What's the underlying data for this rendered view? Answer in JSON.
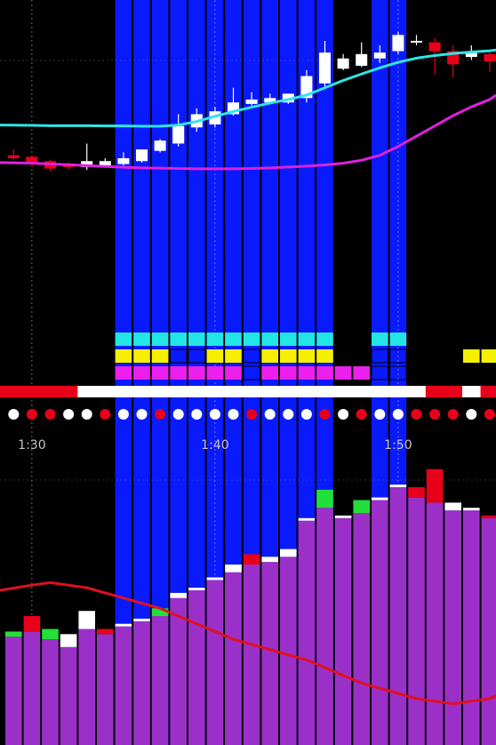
{
  "chart_data": {
    "type": "candlestick",
    "x_ticks": [
      "1:30",
      "1:40",
      "1:50"
    ],
    "x_tick_bars": [
      1,
      11,
      21
    ],
    "price_range": [
      0,
      100
    ],
    "volume_range": [
      0,
      100
    ],
    "colors": {
      "background": "#000000",
      "highlight": "#0a1aff",
      "up_candle": "#ffffff",
      "down_candle": "#e8001a",
      "fast_ma": "#2ee6e6",
      "slow_ma": "#e020e0",
      "volume_bar": "#9b30c8",
      "volume_ma": "#e01020",
      "volume_up_cap": "#ffffff",
      "volume_down_cap": "#e8001a",
      "volume_green_cap": "#22e03a",
      "signal_cyan": "#22e6e6",
      "signal_yellow": "#f4f000",
      "signal_magenta": "#ec20ec",
      "status_red": "#e8001a",
      "status_white": "#ffffff"
    },
    "highlighted_bars": [
      6,
      7,
      8,
      9,
      10,
      11,
      12,
      13,
      14,
      15,
      16,
      17,
      20,
      21
    ],
    "candles": [
      {
        "o": 49.5,
        "h": 51.5,
        "l": 48.0,
        "c": 48.5
      },
      {
        "o": 49.0,
        "h": 49.5,
        "l": 45.5,
        "c": 46.5
      },
      {
        "o": 47.5,
        "h": 48.0,
        "l": 44.0,
        "c": 45.0
      },
      {
        "o": 46.5,
        "h": 47.0,
        "l": 44.5,
        "c": 45.5
      },
      {
        "o": 45.5,
        "h": 53.5,
        "l": 44.5,
        "c": 47.5
      },
      {
        "o": 46.0,
        "h": 48.5,
        "l": 45.5,
        "c": 47.5
      },
      {
        "o": 46.5,
        "h": 50.5,
        "l": 46.0,
        "c": 48.5
      },
      {
        "o": 47.5,
        "h": 51.5,
        "l": 47.0,
        "c": 51.5
      },
      {
        "o": 51.0,
        "h": 55.0,
        "l": 50.5,
        "c": 54.5
      },
      {
        "o": 53.5,
        "h": 63.5,
        "l": 52.5,
        "c": 59.5
      },
      {
        "o": 59.0,
        "h": 65.5,
        "l": 57.5,
        "c": 63.5
      },
      {
        "o": 60.0,
        "h": 66.0,
        "l": 59.0,
        "c": 64.5
      },
      {
        "o": 63.5,
        "h": 72.5,
        "l": 63.0,
        "c": 67.5
      },
      {
        "o": 67.0,
        "h": 71.0,
        "l": 66.5,
        "c": 68.5
      },
      {
        "o": 67.5,
        "h": 70.5,
        "l": 67.0,
        "c": 69.0
      },
      {
        "o": 67.5,
        "h": 70.5,
        "l": 67.0,
        "c": 70.5
      },
      {
        "o": 69.0,
        "h": 78.5,
        "l": 67.5,
        "c": 76.5
      },
      {
        "o": 74.0,
        "h": 88.5,
        "l": 72.5,
        "c": 84.5
      },
      {
        "o": 79.0,
        "h": 84.0,
        "l": 78.5,
        "c": 82.5
      },
      {
        "o": 80.0,
        "h": 88.0,
        "l": 79.5,
        "c": 84.0
      },
      {
        "o": 82.5,
        "h": 87.0,
        "l": 81.0,
        "c": 84.5
      },
      {
        "o": 85.0,
        "h": 91.5,
        "l": 84.0,
        "c": 90.5
      },
      {
        "o": 88.0,
        "h": 90.5,
        "l": 87.0,
        "c": 88.5
      },
      {
        "o": 88.0,
        "h": 89.5,
        "l": 77.0,
        "c": 85.0
      },
      {
        "o": 85.0,
        "h": 87.0,
        "l": 76.0,
        "c": 80.5
      },
      {
        "o": 83.0,
        "h": 87.0,
        "l": 82.0,
        "c": 84.5
      },
      {
        "o": 84.0,
        "h": 84.5,
        "l": 78.0,
        "c": 81.5
      },
      {
        "o": 81.0,
        "h": 82.0,
        "l": 76.0,
        "c": 77.0
      }
    ],
    "fast_ma": [
      59.8,
      59.7,
      59.6,
      59.6,
      59.6,
      59.5,
      59.5,
      59.4,
      59.4,
      59.8,
      61.0,
      62.8,
      64.4,
      65.9,
      67.3,
      68.5,
      70.0,
      72.5,
      75.0,
      77.2,
      79.3,
      81.2,
      82.6,
      83.5,
      84.2,
      84.7,
      85.1,
      85.4
    ],
    "slow_ma": [
      47.0,
      46.8,
      46.5,
      46.3,
      46.0,
      45.7,
      45.4,
      45.2,
      45.1,
      45.0,
      44.9,
      44.9,
      44.9,
      45.0,
      45.2,
      45.5,
      45.8,
      46.2,
      46.8,
      47.8,
      49.5,
      52.5,
      56.0,
      59.5,
      63.0,
      66.0,
      68.5,
      70.0
    ],
    "volume": [
      42,
      44,
      41,
      38,
      45,
      43,
      46,
      48,
      50,
      57,
      60,
      64,
      67,
      70,
      71,
      73,
      87,
      92,
      88,
      90,
      95,
      100,
      96,
      94,
      91,
      91,
      88,
      86
    ],
    "volume_cap_colors": [
      "green",
      "red",
      "green",
      "white",
      "white",
      "red",
      "white",
      "white",
      "green",
      "white",
      "white",
      "white",
      "white",
      "red",
      "white",
      "white",
      "white",
      "green",
      "white",
      "green",
      "white",
      "white",
      "red",
      "red",
      "white",
      "white",
      "red",
      "red"
    ],
    "volume_cap_sizes": [
      2,
      6,
      4,
      5,
      7,
      2,
      1,
      1,
      3,
      2,
      1,
      1,
      3,
      4,
      2,
      3,
      1,
      7,
      1,
      5,
      1,
      1,
      4,
      13,
      3,
      1,
      1,
      5
    ],
    "volume_ma": [
      60,
      62,
      63,
      62,
      61,
      59,
      57,
      55,
      53,
      50,
      47,
      44,
      41,
      39,
      37,
      35,
      33,
      30,
      27,
      24,
      22,
      20,
      18,
      17,
      16,
      17,
      18,
      19
    ],
    "signal_rows": [
      [
        "off",
        "off",
        "off",
        "off",
        "off",
        "off",
        "cyan",
        "cyan",
        "cyan",
        "cyan",
        "cyan",
        "cyan",
        "cyan",
        "cyan",
        "cyan",
        "cyan",
        "cyan",
        "cyan",
        "off",
        "off",
        "cyan",
        "cyan",
        "off",
        "off",
        "off",
        "off",
        "off",
        "off"
      ],
      [
        "off",
        "off",
        "off",
        "off",
        "off",
        "off",
        "yellow",
        "yellow",
        "yellow",
        "dark",
        "dark",
        "yellow",
        "yellow",
        "dark",
        "yellow",
        "yellow",
        "yellow",
        "yellow",
        "off",
        "off",
        "dark",
        "dark",
        "off",
        "off",
        "off",
        "yellow",
        "yellow",
        "yellow"
      ],
      [
        "off",
        "off",
        "off",
        "off",
        "off",
        "off",
        "magenta",
        "magenta",
        "magenta",
        "magenta",
        "magenta",
        "magenta",
        "magenta",
        "dark",
        "magenta",
        "magenta",
        "magenta",
        "magenta",
        "magenta",
        "magenta",
        "dark",
        "dark",
        "off",
        "off",
        "off",
        "off",
        "off",
        "off"
      ]
    ],
    "status_bar": [
      "red",
      "red",
      "red",
      "red",
      "white",
      "white",
      "white",
      "white",
      "white",
      "white",
      "white",
      "white",
      "white",
      "white",
      "white",
      "white",
      "white",
      "white",
      "white",
      "white",
      "white",
      "white",
      "white",
      "red",
      "red",
      "white",
      "red",
      "red"
    ],
    "dots": [
      "white",
      "red",
      "red",
      "white",
      "white",
      "red",
      "white",
      "white",
      "red",
      "white",
      "white",
      "white",
      "white",
      "red",
      "white",
      "white",
      "white",
      "red",
      "white",
      "red",
      "white",
      "white",
      "red",
      "red",
      "red",
      "white",
      "red",
      "white"
    ]
  }
}
